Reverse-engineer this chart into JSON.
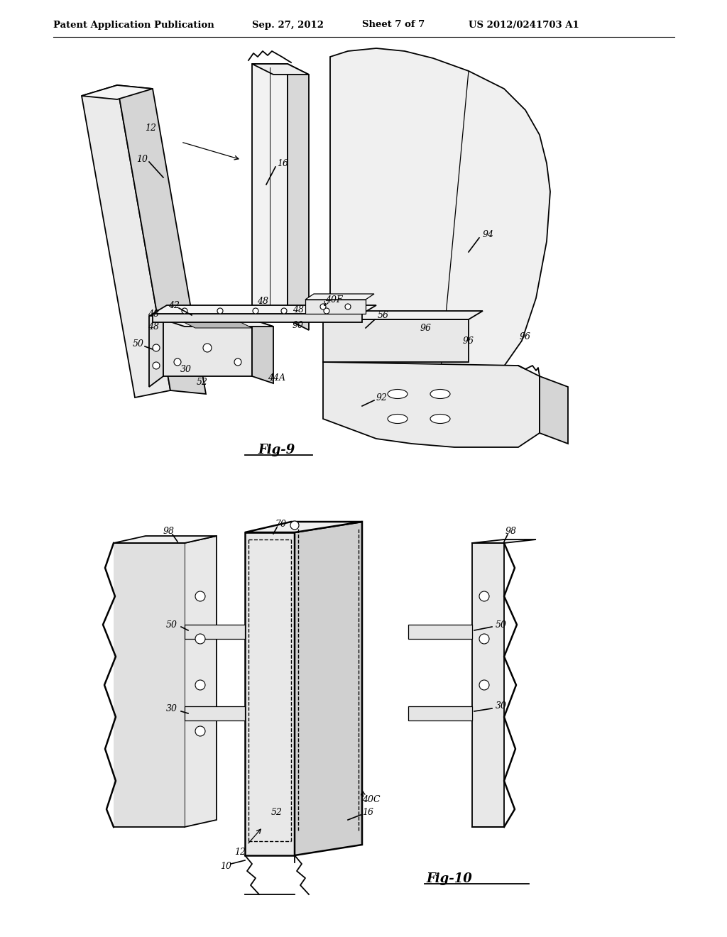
{
  "background_color": "#ffffff",
  "header_text": "Patent Application Publication",
  "header_date": "Sep. 27, 2012",
  "header_sheet": "Sheet 7 of 7",
  "header_patent": "US 2012/0241703 A1",
  "fig9_label": "Fig-9",
  "fig10_label": "Fig-10",
  "line_color": "#000000",
  "fill_light": "#f0f0f0",
  "fill_mid": "#e0e0e0",
  "fill_dark": "#c8c8c8",
  "fill_white": "#ffffff"
}
